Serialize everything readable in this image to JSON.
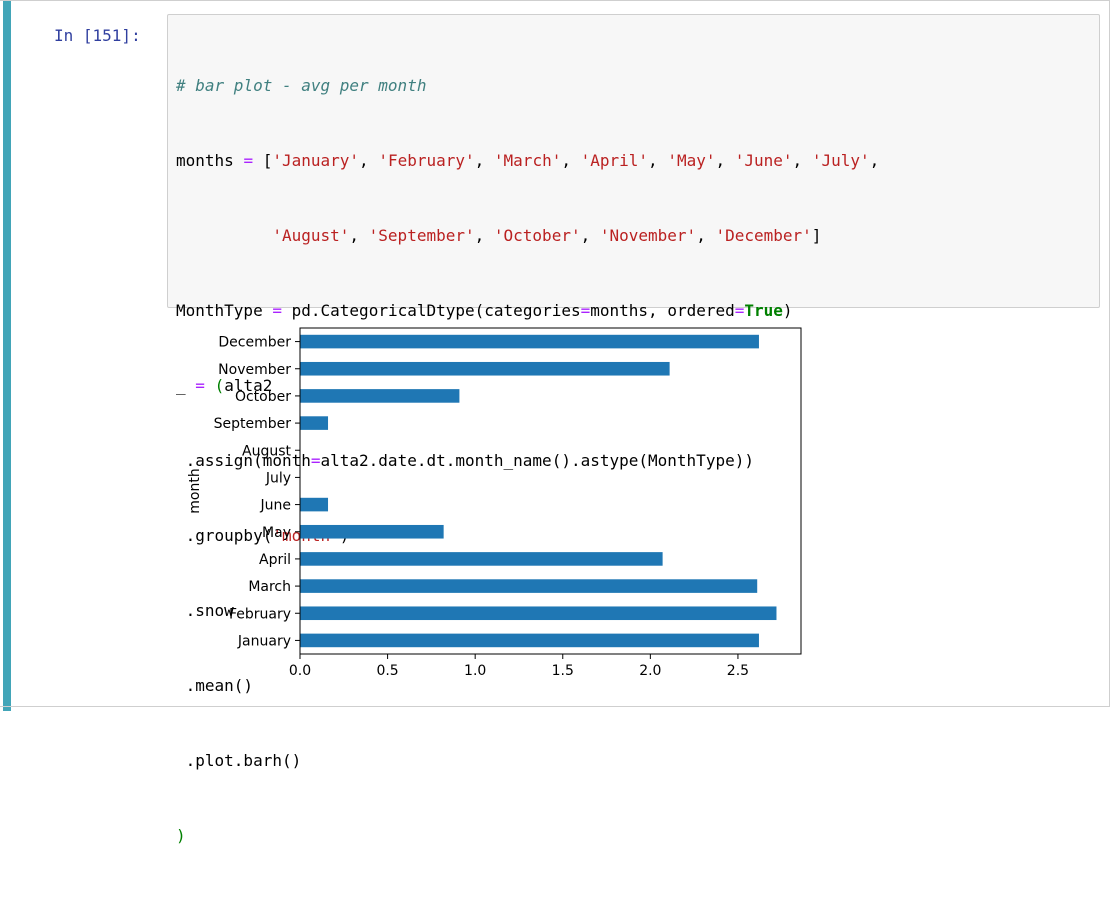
{
  "cell": {
    "prompt": "In [151]:",
    "code": {
      "comment": "# bar plot - avg per month",
      "months_var": "months",
      "months_list_1": [
        "'January'",
        "'February'",
        "'March'",
        "'April'",
        "'May'",
        "'June'",
        "'July'"
      ],
      "months_list_2": [
        "'August'",
        "'September'",
        "'October'",
        "'November'",
        "'December'"
      ],
      "l3_a": "MonthType",
      "l3_b": "pd.CategoricalDtype(categories",
      "l3_c": "months, ordered",
      "l3_kw": "True",
      "l4_a": "_",
      "l4_b": "alta2",
      "l5_a": " .assign(month",
      "l5_b": "alta2.date.dt.month_name().astype(MonthType))",
      "l6_a": " .groupby(",
      "l6_s": "'month'",
      "l7": " .snow",
      "l8": " .mean()",
      "l9": " .plot.barh()",
      "l10": ")"
    }
  },
  "chart_data": {
    "type": "bar",
    "orientation": "horizontal",
    "categories": [
      "January",
      "February",
      "March",
      "April",
      "May",
      "June",
      "July",
      "August",
      "September",
      "October",
      "November",
      "December"
    ],
    "values": [
      2.62,
      2.72,
      2.61,
      2.07,
      0.82,
      0.16,
      0.0,
      0.0,
      0.16,
      0.91,
      2.11,
      2.62
    ],
    "ylabel": "month",
    "xlabel": "",
    "xlim": [
      0,
      2.86
    ],
    "xticks": [
      "0.0",
      "0.5",
      "1.0",
      "1.5",
      "2.0",
      "2.5"
    ],
    "bar_color": "#1f77b4",
    "grid": false,
    "legend": "none"
  }
}
